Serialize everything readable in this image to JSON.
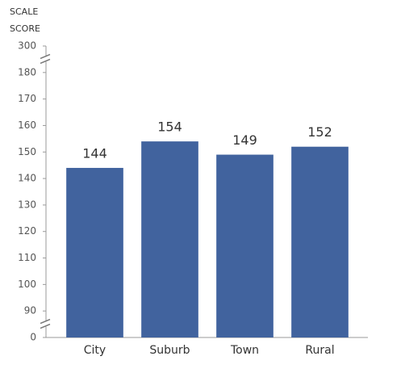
{
  "chart_data": {
    "type": "bar",
    "y_label": "SCALE SCORE",
    "categories": [
      "City",
      "Suburb",
      "Town",
      "Rural"
    ],
    "values": [
      144,
      154,
      149,
      152
    ],
    "color": "#41639e",
    "ylim": [
      0,
      300
    ],
    "yticks": [
      0,
      90,
      100,
      110,
      120,
      130,
      140,
      150,
      160,
      170,
      180,
      300
    ],
    "axis_break": true
  }
}
